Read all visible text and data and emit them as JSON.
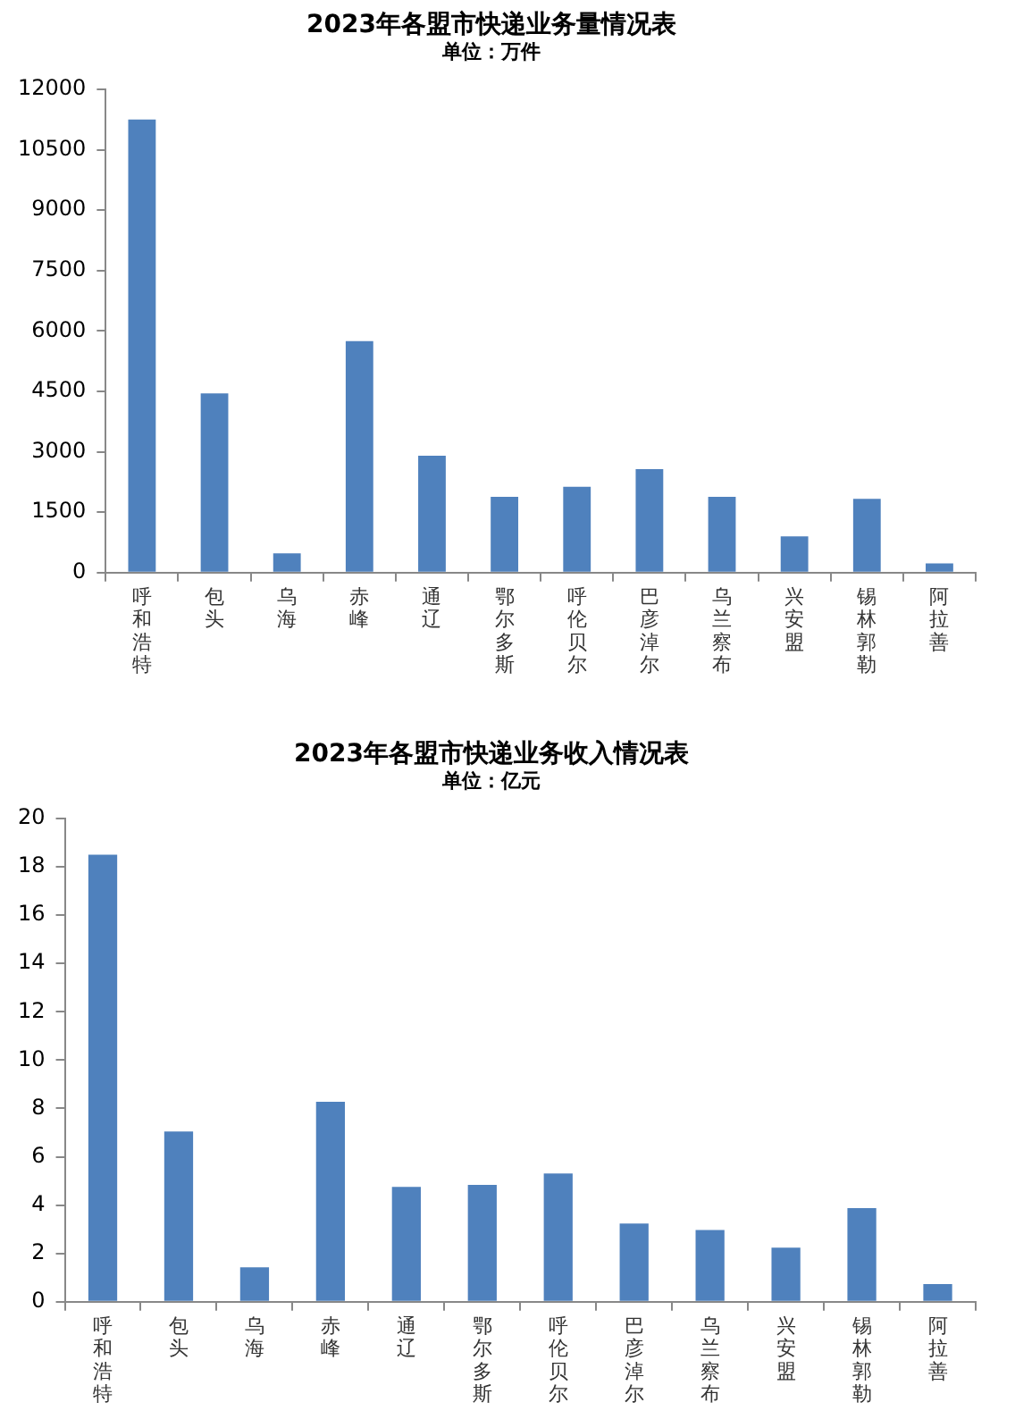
{
  "chart_data": [
    {
      "type": "bar",
      "title": "2023年各盟市快递业务量情况表",
      "subtitle": "单位：万件",
      "categories": [
        "呼和浩特",
        "包头",
        "乌海",
        "赤峰",
        "通辽",
        "鄂尔多斯",
        "呼伦贝尔",
        "巴彦淖尔",
        "乌兰察布",
        "兴安盟",
        "锡林郭勒",
        "阿拉善"
      ],
      "values": [
        11250,
        4450,
        480,
        5750,
        2900,
        1880,
        2130,
        2570,
        1880,
        900,
        1830,
        230
      ],
      "color": "#4f81bd",
      "ylim": [
        0,
        12000
      ],
      "yticks": [
        0,
        1500,
        3000,
        4500,
        6000,
        7500,
        9000,
        10500,
        12000
      ],
      "grid": false,
      "legend": false
    },
    {
      "type": "bar",
      "title": "2023年各盟市快递业务收入情况表",
      "subtitle": "单位：亿元",
      "categories": [
        "呼和浩特",
        "包头",
        "乌海",
        "赤峰",
        "通辽",
        "鄂尔多斯",
        "呼伦贝尔",
        "巴彦淖尔",
        "乌兰察布",
        "兴安盟",
        "锡林郭勒",
        "阿拉善"
      ],
      "values": [
        18.5,
        7.05,
        1.43,
        8.28,
        4.75,
        4.84,
        5.31,
        3.24,
        2.97,
        2.24,
        3.88,
        0.73
      ],
      "color": "#4f81bd",
      "ylim": [
        0,
        20
      ],
      "yticks": [
        0,
        2,
        4,
        6,
        8,
        10,
        12,
        14,
        16,
        18,
        20
      ],
      "grid": false,
      "legend": false
    }
  ]
}
